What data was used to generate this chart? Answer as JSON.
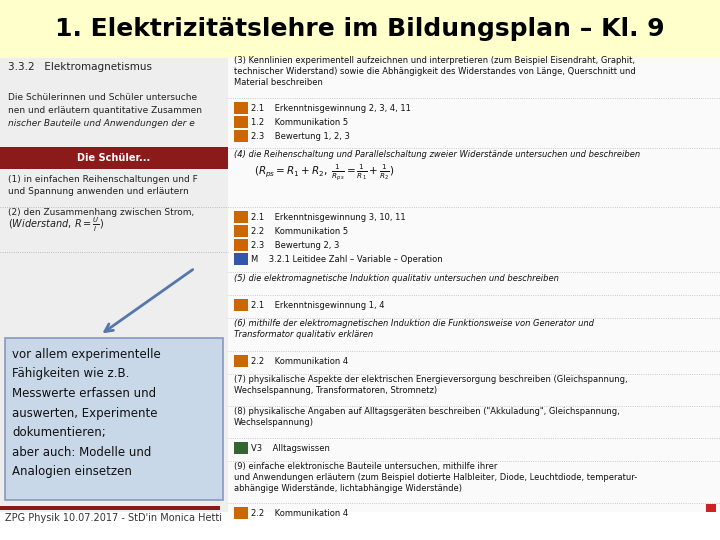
{
  "title": "1. Elektrizitätslehre im Bildungsplan – Kl. 9",
  "title_bg": "#ffffcc",
  "title_color": "#000000",
  "title_fontsize": 18,
  "slide_bg": "#ffffff",
  "footer_text": "ZPG Physik 10.07.2017 - StD'in Monica Hetti",
  "footer_fontsize": 7,
  "callout_text": "vor allem experimentelle\nFähigkeiten wie z.B.\nMesswerte erfassen und\nauswerten, Experimente\ndokumentieren;\naber auch: Modelle und\nAnalogien einsetzen",
  "callout_bg": "#c8d8e8",
  "callout_border": "#8899bb",
  "callout_fontsize": 8.5,
  "arrow_color": "#5577aa",
  "red_line_color": "#8B1A1A",
  "red_dot_color": "#cc2222",
  "left_bg": "#eeeeee",
  "right_bg": "#fafafa",
  "dark_red_bar": "#8B1A1A",
  "p_color": "#cc6600",
  "fm_color": "#cc2200",
  "lv_color": "#336633",
  "dot_line_color": "#aaaaaa"
}
